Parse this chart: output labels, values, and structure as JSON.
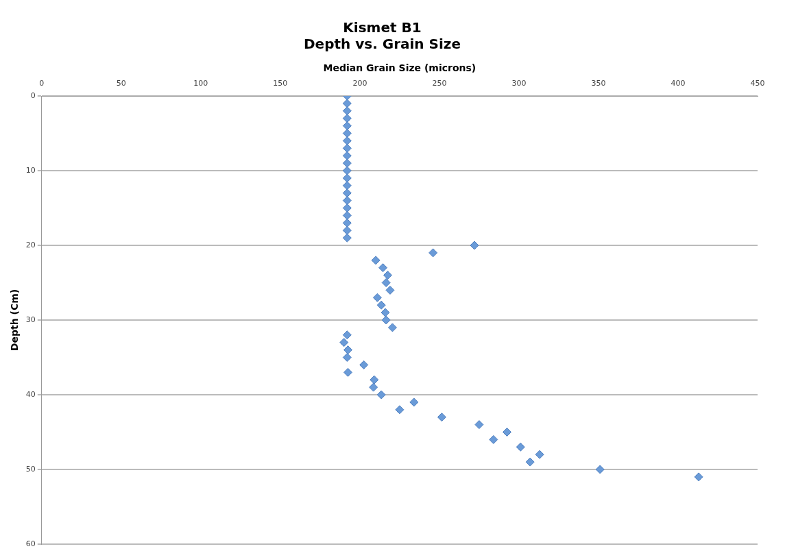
{
  "chart_data": {
    "type": "scatter",
    "title": [
      "Kismet B1",
      "Depth vs. Grain Size"
    ],
    "xlabel": "Median Grain Size (microns)",
    "ylabel": "Depth (Cm)",
    "x": [
      192,
      192,
      192,
      192,
      192,
      192,
      192,
      192,
      192,
      192,
      192,
      192,
      192,
      192,
      192,
      192,
      192,
      192,
      192,
      192,
      272,
      246,
      210,
      214.5,
      217.5,
      216.5,
      219,
      211,
      213.5,
      216,
      216.5,
      220.5,
      192,
      190,
      192.5,
      192,
      202.5,
      192.5,
      209,
      208.5,
      213.5,
      234,
      225,
      251.5,
      275,
      292.5,
      284,
      301,
      313,
      307,
      351,
      413
    ],
    "values": [
      0,
      1,
      2,
      3,
      4,
      5,
      6,
      7,
      8,
      9,
      10,
      11,
      12,
      13,
      14,
      15,
      16,
      17,
      18,
      19,
      20,
      21,
      22,
      23,
      24,
      25,
      26,
      27,
      28,
      29,
      30,
      31,
      32,
      33,
      34,
      35,
      36,
      37,
      38,
      39,
      40,
      41,
      42,
      43,
      44,
      45,
      46,
      47,
      48,
      49,
      50,
      51
    ],
    "color": "#6a9bd8",
    "marker": "diamond",
    "xlim": [
      0,
      450
    ],
    "xticks": [
      0,
      50,
      100,
      150,
      200,
      250,
      300,
      350,
      400,
      450
    ],
    "ylim": [
      60,
      0
    ],
    "yticks": [
      0,
      10,
      20,
      30,
      40,
      50,
      60
    ],
    "grid": "y",
    "legend": false
  }
}
